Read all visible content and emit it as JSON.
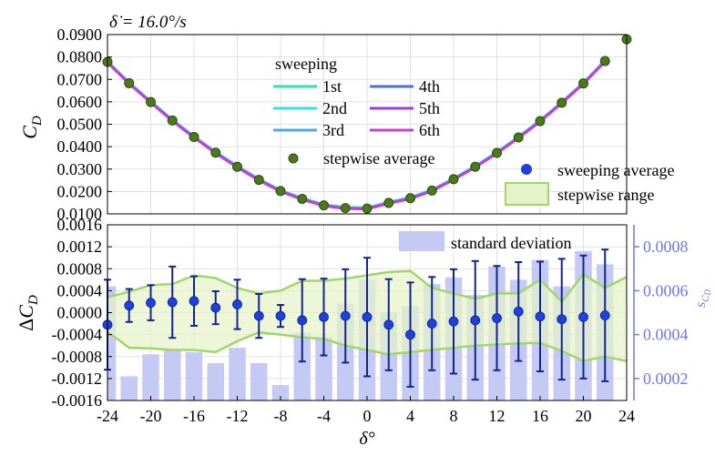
{
  "figure_title": "δ̇ = 16.0°/s",
  "colors": {
    "sweep": [
      "#2ee6a8",
      "#33e0ee",
      "#4aa8f0",
      "#4f6ee0",
      "#9a3cf0",
      "#d23ad2"
    ],
    "stepwise_avg": "#4b7a1c",
    "sweep_avg": "#1f3fe0",
    "errorbar": "#12258f",
    "range_fill": "#e6f3c8",
    "range_line": "#a3d66a",
    "std_bar": "#c5caf4",
    "right_axis": "#6f78e6",
    "grid": "#d9d9d9"
  },
  "chart_data": [
    {
      "type": "line",
      "ylabel": "C_D",
      "xlim": [
        -24,
        24
      ],
      "ylim": [
        0.01,
        0.09
      ],
      "yticks": [
        "0.0100",
        "0.0200",
        "0.0300",
        "0.0400",
        "0.0500",
        "0.0600",
        "0.0700",
        "0.0800",
        "0.0900"
      ],
      "grid": true,
      "legend_title": "sweeping",
      "legend_position": "top-center",
      "series": [
        {
          "name": "1st",
          "offset": 0.0004
        },
        {
          "name": "2nd",
          "offset": 0.0002
        },
        {
          "name": "3rd",
          "offset": 0.0001
        },
        {
          "name": "4th",
          "offset": -0.0001
        },
        {
          "name": "5th",
          "offset": -0.0002
        },
        {
          "name": "6th",
          "offset": -0.0003
        }
      ],
      "stepwise_average": {
        "name": "stepwise average",
        "x": [
          -24,
          -22,
          -20,
          -18,
          -16,
          -14,
          -12,
          -10,
          -8,
          -6,
          -4,
          -2,
          0,
          2,
          4,
          6,
          8,
          10,
          12,
          14,
          16,
          18,
          20,
          22,
          24
        ],
        "y": [
          0.0778,
          0.0683,
          0.0599,
          0.0517,
          0.0443,
          0.0373,
          0.031,
          0.0252,
          0.0202,
          0.0167,
          0.0138,
          0.0126,
          0.0124,
          0.0149,
          0.017,
          0.0204,
          0.0255,
          0.031,
          0.0372,
          0.0441,
          0.0514,
          0.0596,
          0.0682,
          0.0782,
          0.0879
        ]
      }
    },
    {
      "type": "bar+errorbar",
      "xlabel": "δ°",
      "ylabel": "ΔC_D",
      "right_ylabel": "s_{C_D}",
      "xlim": [
        -24,
        24
      ],
      "xticks": [
        "-24",
        "-20",
        "-16",
        "-12",
        "-8",
        "-4",
        "0",
        "4",
        "8",
        "12",
        "16",
        "20",
        "24"
      ],
      "ylim": [
        -0.0016,
        0.0016
      ],
      "yticks": [
        "-0.0016",
        "-0.0012",
        "-0.0008",
        "-0.0004",
        "0.0000",
        "0.0004",
        "0.0008",
        "0.0012",
        "0.0016"
      ],
      "right_ylim": [
        0.0001,
        0.0009
      ],
      "right_yticks": [
        "0.0002",
        "0.0004",
        "0.0006",
        "0.0008"
      ],
      "sweeping_average": {
        "name": "sweeping average",
        "x": [
          -24,
          -22,
          -20,
          -18,
          -16,
          -14,
          -12,
          -10,
          -8,
          -6,
          -4,
          -2,
          0,
          2,
          4,
          6,
          8,
          10,
          12,
          14,
          16,
          18,
          20,
          22
        ],
        "y": [
          -0.00022,
          0.00013,
          0.00018,
          0.00019,
          0.00021,
          9e-05,
          0.00015,
          -6e-05,
          -6e-05,
          -0.00014,
          -8e-05,
          -6e-05,
          -8e-05,
          -0.00022,
          -0.0004,
          -0.0002,
          -0.00016,
          -0.00014,
          -0.0001,
          2e-05,
          -7e-05,
          -0.00012,
          -8e-05,
          -5e-05
        ],
        "err": [
          0.00082,
          0.0003,
          0.00032,
          0.00065,
          0.00045,
          0.0003,
          0.00045,
          0.0004,
          0.0002,
          0.00075,
          0.0007,
          0.00085,
          0.00108,
          0.00083,
          0.00095,
          0.00085,
          0.00095,
          0.00108,
          0.00095,
          0.0009,
          0.001,
          0.0011,
          0.00112,
          0.0012
        ]
      },
      "stepwise_range": {
        "name": "stepwise range",
        "x": [
          -24,
          -22,
          -20,
          -18,
          -16,
          -14,
          -12,
          -10,
          -8,
          -6,
          -4,
          -2,
          0,
          2,
          4,
          6,
          8,
          10,
          12,
          14,
          16,
          18,
          20,
          22,
          24
        ],
        "upper": [
          0.00028,
          0.00038,
          0.0005,
          0.00052,
          0.00068,
          0.00063,
          0.00045,
          0.00035,
          0.0004,
          0.00058,
          0.00058,
          0.00062,
          0.00068,
          0.00074,
          0.00076,
          0.00045,
          0.00035,
          0.00025,
          0.00035,
          0.00035,
          0.0006,
          0.0002,
          0.0007,
          0.00045,
          0.00065
        ],
        "lower": [
          -0.00035,
          -0.00064,
          -0.00065,
          -0.00068,
          -0.00068,
          -0.00072,
          -0.00052,
          -0.00036,
          -0.0004,
          -0.00045,
          -0.00048,
          -0.0006,
          -0.00068,
          -0.00076,
          -0.00072,
          -0.00068,
          -0.00064,
          -0.0006,
          -0.00058,
          -0.00056,
          -0.00055,
          -0.0007,
          -0.00088,
          -0.0008,
          -0.00088
        ]
      },
      "standard_deviation": {
        "name": "standard deviation",
        "x": [
          -24,
          -22,
          -20,
          -18,
          -16,
          -14,
          -12,
          -10,
          -8,
          -6,
          -4,
          -2,
          0,
          2,
          4,
          6,
          8,
          10,
          12,
          14,
          16,
          18,
          20,
          22
        ],
        "values": [
          0.00062,
          0.00021,
          0.00031,
          0.00033,
          0.00032,
          0.00027,
          0.00034,
          0.00027,
          0.00017,
          0.00041,
          0.00039,
          0.00054,
          0.00065,
          0.0005,
          0.00053,
          0.00063,
          0.00066,
          0.00058,
          0.00071,
          0.00065,
          0.00074,
          0.00062,
          0.00078,
          0.00072
        ]
      }
    }
  ],
  "legend": {
    "sweeping_title": "sweeping",
    "stepwise_average": "stepwise average",
    "sweeping_average": "sweeping average",
    "stepwise_range": "stepwise range",
    "standard_deviation": "standard deviation"
  }
}
